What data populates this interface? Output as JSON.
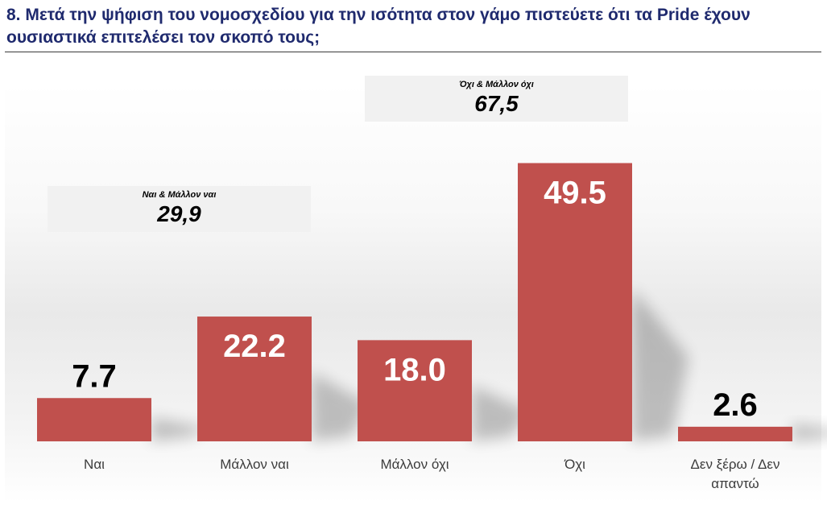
{
  "title": "8. Μετά την ψήφιση του νομοσχεδίου για την ισότητα στον γάμο πιστεύετε ότι τα Pride έχουν ουσιαστικά επιτελέσει τον σκοπό τους;",
  "callouts": {
    "no": {
      "label": "Όχι & Μάλλον όχι",
      "value": "67,5"
    },
    "yes": {
      "label": "Ναι & Μάλλον ναι",
      "value": "29,9"
    }
  },
  "chart_data": {
    "type": "bar",
    "categories": [
      "Ναι",
      "Μάλλον ναι",
      "Μάλλον όχι",
      "Όχι",
      "Δεν ξέρω / Δεν απαντώ"
    ],
    "values": [
      7.7,
      22.2,
      18.0,
      49.5,
      2.6
    ],
    "value_labels": [
      "7.7",
      "22.2",
      "18.0",
      "49.5",
      "2.6"
    ],
    "ylim": [
      0,
      60
    ],
    "grid": false,
    "bar_color": "#c0504d",
    "label_color_inside": "#ffffff",
    "label_color_outside": "#000000"
  }
}
